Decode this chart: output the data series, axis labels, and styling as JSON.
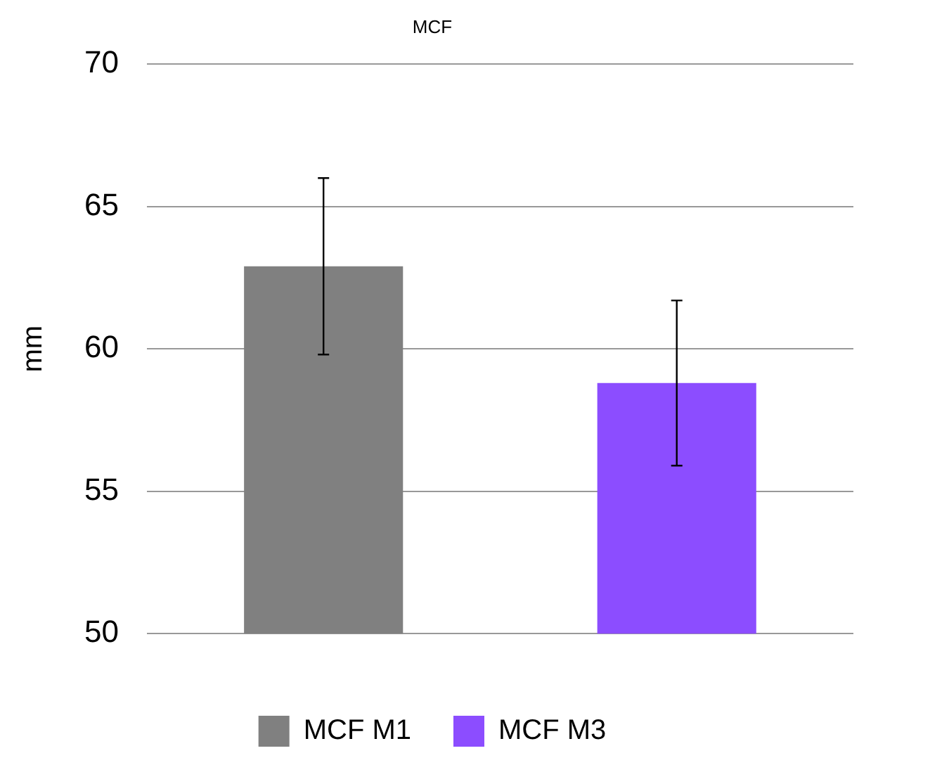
{
  "chart_data": {
    "type": "bar",
    "title": "MCF",
    "ylabel": "mm",
    "categories": [
      null,
      null
    ],
    "series": [
      {
        "name": "MCF M1",
        "color": "#808080",
        "values": [
          62.9,
          null
        ],
        "errors": [
          3.1,
          null
        ]
      },
      {
        "name": "MCF M3",
        "color": "#8c4dff",
        "values": [
          null,
          58.8
        ],
        "errors": [
          null,
          2.9
        ]
      }
    ],
    "ylim": [
      50,
      70
    ],
    "yticks": [
      50,
      55,
      60,
      65,
      70
    ],
    "grid": "y",
    "legend": "bottom"
  }
}
